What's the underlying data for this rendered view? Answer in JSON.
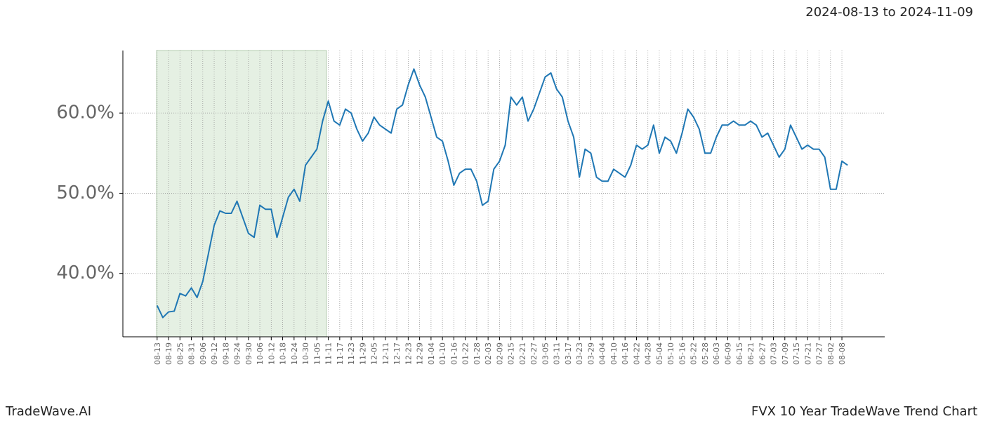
{
  "date_range": "2024-08-13 to 2024-11-09",
  "brand": "TradeWave.AI",
  "chart_title": "FVX 10 Year TradeWave Trend Chart",
  "chart_data": {
    "type": "line",
    "categories": [
      "08-13",
      null,
      "08-19",
      null,
      "08-25",
      null,
      "08-31",
      null,
      "09-06",
      null,
      "09-12",
      null,
      "09-18",
      null,
      "09-24",
      null,
      "09-30",
      null,
      "10-06",
      null,
      "10-12",
      null,
      "10-18",
      null,
      "10-24",
      null,
      "10-30",
      null,
      "11-05",
      null,
      "11-11",
      null,
      "11-17",
      null,
      "11-23",
      null,
      "11-29",
      null,
      "12-05",
      null,
      "12-11",
      null,
      "12-17",
      null,
      "12-23",
      null,
      "12-29",
      null,
      "01-04",
      null,
      "01-10",
      null,
      "01-16",
      null,
      "01-22",
      null,
      "01-28",
      null,
      "02-03",
      null,
      "02-09",
      null,
      "02-15",
      null,
      "02-21",
      null,
      "02-27",
      null,
      "03-05",
      null,
      "03-11",
      null,
      "03-17",
      null,
      "03-23",
      null,
      "03-29",
      null,
      "04-04",
      null,
      "04-10",
      null,
      "04-16",
      null,
      "04-22",
      null,
      "04-28",
      null,
      "05-04",
      null,
      "05-10",
      null,
      "05-16",
      null,
      "05-22",
      null,
      "05-28",
      null,
      "06-03",
      null,
      "06-09",
      null,
      "06-15",
      null,
      "06-21",
      null,
      "06-27",
      null,
      "07-03",
      null,
      "07-09",
      null,
      "07-15",
      null,
      "07-21",
      null,
      "07-27",
      null,
      "08-02",
      null,
      "08-08",
      null
    ],
    "values": [
      36,
      34.5,
      35.2,
      35.3,
      37.5,
      37.2,
      38.2,
      37,
      39,
      42.5,
      46,
      47.8,
      47.5,
      47.5,
      49,
      47,
      45,
      44.5,
      48.5,
      48,
      48,
      44.5,
      47,
      49.5,
      50.5,
      49,
      53.5,
      54.5,
      55.5,
      59,
      61.5,
      59,
      58.5,
      60.5,
      60,
      58,
      56.5,
      57.5,
      59.5,
      58.5,
      58,
      57.5,
      60.5,
      61,
      63.5,
      65.5,
      63.5,
      62,
      59.5,
      57,
      56.5,
      54,
      51,
      52.5,
      53,
      53,
      51.5,
      48.5,
      49,
      53,
      54,
      56,
      62,
      61,
      62,
      59,
      60.5,
      62.5,
      64.5,
      65,
      63,
      62,
      59,
      57,
      52,
      55.5,
      55,
      52,
      51.5,
      51.5,
      53,
      52.5,
      52,
      53.5,
      56,
      55.5,
      56,
      58.5,
      55,
      57,
      56.5,
      55,
      57.5,
      60.5,
      59.5,
      58,
      55,
      55,
      57,
      58.5,
      58.5,
      59,
      58.5,
      58.5,
      59,
      58.5,
      57,
      57.5,
      56,
      54.5,
      55.5,
      58.5,
      57,
      55.5,
      56,
      55.5,
      55.5,
      54.5,
      50.5,
      50.5,
      54,
      53.5
    ],
    "color": "#1f77b4",
    "ylim": [
      32.1,
      67.8
    ],
    "yticks": [
      {
        "value": 40,
        "label": "40.0%"
      },
      {
        "value": 50,
        "label": "50.0%"
      },
      {
        "value": 60,
        "label": "60.0%"
      }
    ],
    "grid": true
  }
}
